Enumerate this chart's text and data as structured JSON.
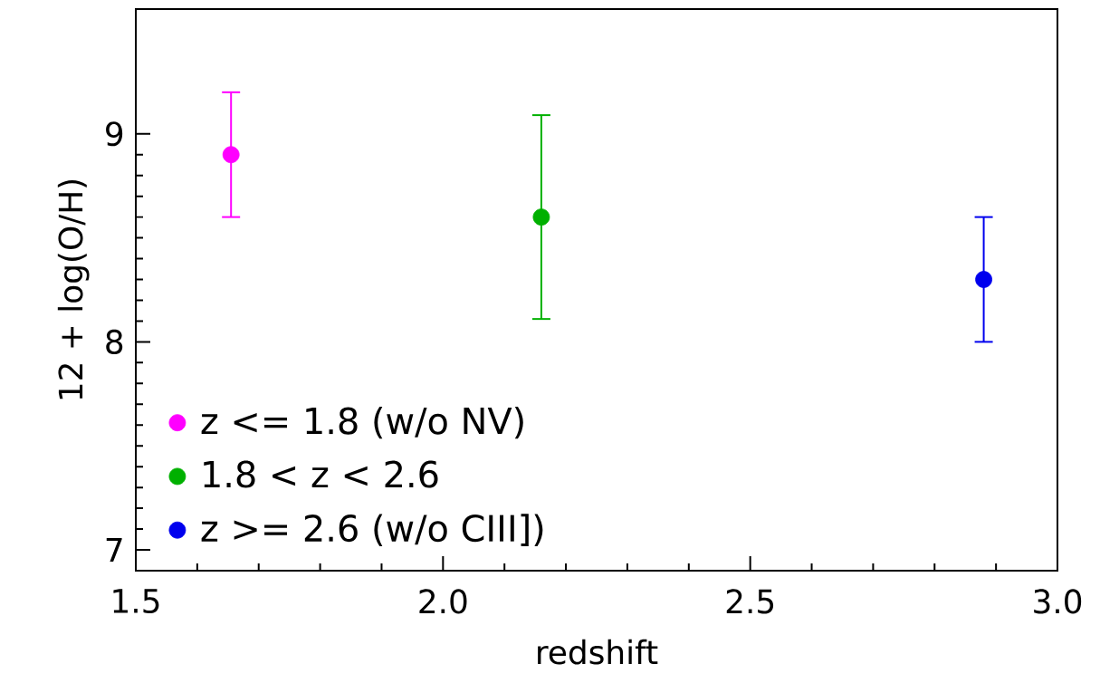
{
  "chart_data": {
    "type": "scatter",
    "xlabel": "redshift",
    "ylabel": "12 + log(O/H)",
    "xlim": [
      1.5,
      3.0
    ],
    "ylim": [
      6.9,
      9.6
    ],
    "xticks": [
      1.5,
      {
        "value": 2,
        "label": "2.0"
      },
      2.5,
      {
        "value": 3,
        "label": "3.0"
      }
    ],
    "yticks": [
      7,
      8,
      9
    ],
    "marker": "circle",
    "legend": "bottom left",
    "series": [
      {
        "name": "z <= 1.8 (w/o NV)",
        "color": "#ff00ff",
        "x": [
          1.655
        ],
        "values": [
          8.9
        ],
        "errors": [
          [
            8.6,
            9.2
          ]
        ]
      },
      {
        "name": "1.8 < z < 2.6",
        "color": "#00b000",
        "x": [
          2.16
        ],
        "values": [
          8.6
        ],
        "errors": [
          [
            8.11,
            9.09
          ]
        ]
      },
      {
        "name": "z >= 2.6 (w/o CIII])",
        "color": "#0000ee",
        "x": [
          2.88
        ],
        "values": [
          8.3
        ],
        "errors": [
          [
            8.0,
            8.6
          ]
        ]
      }
    ]
  }
}
